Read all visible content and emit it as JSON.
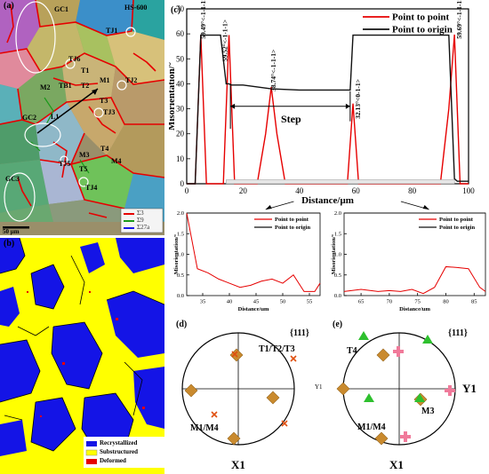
{
  "panel_a": {
    "label": "(a)",
    "tag": "HS-600",
    "scale_bar": "50 μm",
    "grain_labels": [
      "GC1",
      "TJ1",
      "TJ6",
      "T1",
      "M2",
      "TB1",
      "T2",
      "M1",
      "TJ2",
      "GC2",
      "L1",
      "T3",
      "TJ3",
      "M3",
      "T4",
      "TJ5",
      "T5",
      "M4",
      "TJ4",
      "GC3"
    ],
    "legend": [
      "Σ3",
      "Σ9",
      "Σ27a"
    ]
  },
  "panel_b": {
    "label": "(b)",
    "legend": [
      "Recrystallized",
      "Substructured",
      "Deformed"
    ],
    "legend_colors": [
      "#1414e6",
      "#ffff00",
      "#e60000"
    ]
  },
  "panel_c": {
    "label": "(c)",
    "main_chart": {
      "type": "line",
      "xlabel": "Distance/μm",
      "ylabel": "Misorientation/°",
      "xlim": [
        0,
        100
      ],
      "ylim": [
        0,
        70
      ],
      "xticks": [
        0,
        20,
        40,
        60,
        80,
        100
      ],
      "yticks": [
        0,
        10,
        20,
        30,
        40,
        50,
        60,
        70
      ],
      "legend_position": "top-right",
      "series": [
        {
          "name": "Point to point",
          "color": "#e60000",
          "x": [
            0,
            3,
            5,
            7,
            10,
            13,
            15,
            17,
            20,
            25,
            28,
            30,
            32,
            35,
            50,
            55,
            57,
            59,
            61,
            63,
            70,
            85,
            90,
            93,
            95,
            97,
            100
          ],
          "y": [
            0,
            0,
            59.5,
            0,
            0,
            0,
            59.5,
            0,
            0,
            0,
            20,
            38.7,
            20,
            0,
            0,
            0,
            0,
            32.1,
            0,
            0,
            0,
            0,
            0,
            30,
            59.7,
            0,
            0
          ]
        },
        {
          "name": "Point to origin",
          "color": "#111111",
          "x": [
            0,
            3,
            5,
            12,
            14,
            15,
            16,
            20,
            30,
            40,
            50,
            57,
            58,
            59,
            60,
            70,
            80,
            90,
            93,
            95,
            96,
            97,
            100
          ],
          "y": [
            0,
            0,
            59.5,
            59.5,
            40,
            40,
            39.5,
            39.5,
            38,
            37.5,
            37.5,
            37.5,
            37.5,
            59.5,
            59.5,
            59.5,
            59.5,
            59.5,
            59.5,
            2,
            1,
            1,
            1
          ]
        }
      ],
      "annotations": [
        "59.49°<-1-1-1>",
        "59.52°<-1-1-1>",
        "38.74°<-1-1-1>",
        "32.13°<0-1-1>",
        "59.69°<-1-1-1>",
        "Step"
      ]
    },
    "inset_left": {
      "type": "line",
      "xlabel": "Distance/μm",
      "ylabel": "Misorientation/°",
      "xlim": [
        32,
        57
      ],
      "ylim": [
        0,
        2.0
      ],
      "xticks": [
        35,
        40,
        45,
        50,
        55
      ],
      "yticks": [
        0.0,
        0.5,
        1.0,
        1.5,
        2.0
      ],
      "series": [
        {
          "name": "Point to point",
          "color": "#e60000",
          "x": [
            32,
            34,
            36,
            38,
            40,
            42,
            44,
            46,
            48,
            50,
            52,
            54,
            56,
            57
          ],
          "y": [
            2.0,
            0.65,
            0.55,
            0.4,
            0.3,
            0.2,
            0.25,
            0.35,
            0.4,
            0.3,
            0.5,
            0.1,
            0.1,
            0.3
          ]
        },
        {
          "name": "Point to origin",
          "color": "#111111",
          "x": [
            32,
            57
          ],
          "y": [
            2.05,
            2.05
          ]
        }
      ]
    },
    "inset_right": {
      "type": "line",
      "xlabel": "Distance/μm",
      "ylabel": "Misorientation/°",
      "xlim": [
        62,
        87
      ],
      "ylim": [
        0,
        2.0
      ],
      "xticks": [
        65,
        70,
        75,
        80,
        85
      ],
      "yticks": [
        0.0,
        0.5,
        1.0,
        1.5,
        2.0
      ],
      "series": [
        {
          "name": "Point to point",
          "color": "#e60000",
          "x": [
            62,
            65,
            68,
            70,
            72,
            74,
            76,
            78,
            80,
            82,
            84,
            86,
            87
          ],
          "y": [
            0.1,
            0.15,
            0.1,
            0.12,
            0.1,
            0.15,
            0.05,
            0.2,
            0.7,
            0.68,
            0.65,
            0.2,
            0.1
          ]
        },
        {
          "name": "Point to origin",
          "color": "#111111",
          "x": [
            62,
            87
          ],
          "y": [
            2.05,
            2.05
          ]
        }
      ]
    }
  },
  "panel_d": {
    "label": "(d)",
    "pole": "{111}",
    "axis_right": "Y1",
    "axis_bottom": "X1",
    "labels": [
      "T1/T2/T3",
      "M1/M4"
    ]
  },
  "panel_e": {
    "label": "(e)",
    "pole": "{111}",
    "axis_right": "Y1",
    "axis_bottom": "X1",
    "labels": [
      "T4",
      "M3",
      "M1/M4"
    ]
  }
}
